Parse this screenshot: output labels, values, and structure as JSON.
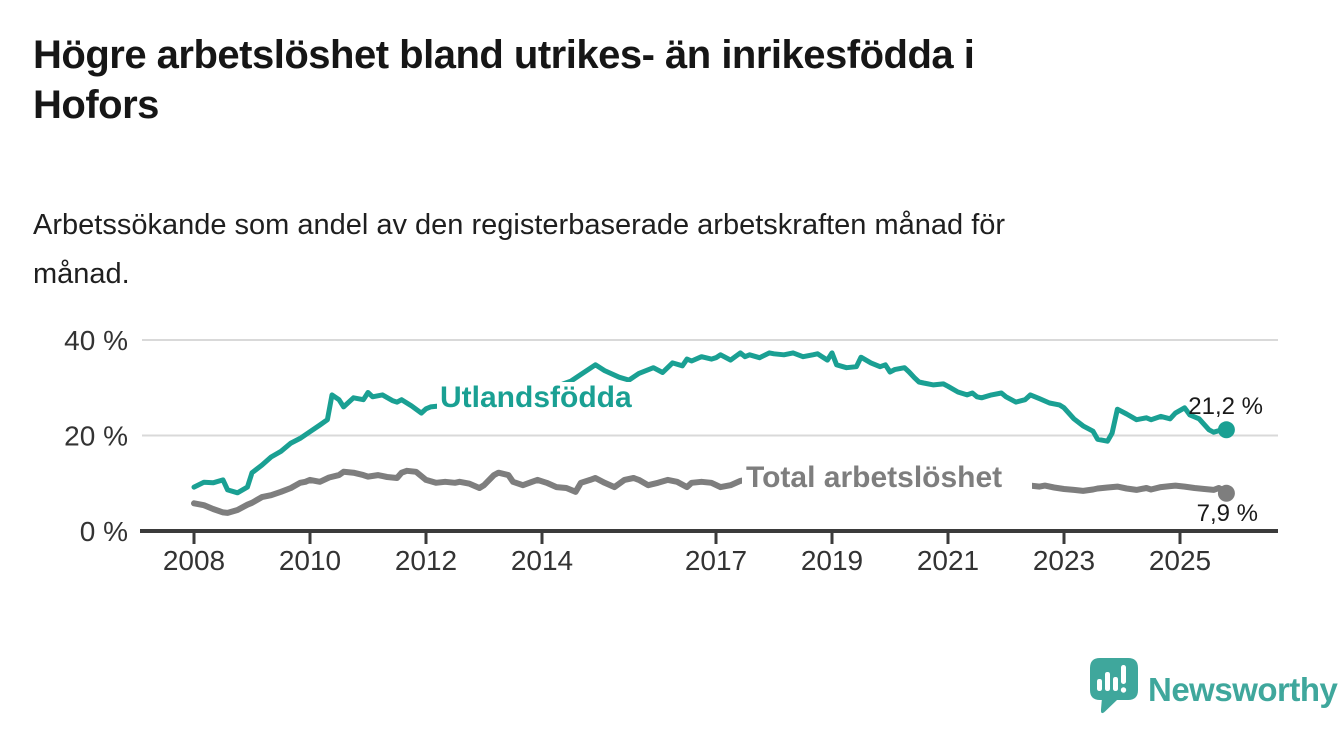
{
  "header": {
    "title_lines": [
      "Högre arbetslöshet bland utrikes- än inrikesfödda i",
      "Hofors"
    ],
    "subtitle_lines": [
      "Arbetssökande som andel av den registerbaserade arbetskraften månad för",
      "månad."
    ]
  },
  "chart_data": {
    "type": "line",
    "title": "Högre arbetslöshet bland utrikes- än inrikesfödda i Hofors",
    "subtitle": "Arbetssökande som andel av den registerbaserade arbetskraften månad för månad.",
    "grid": "horizontal-only",
    "legend_position": "inline-labels-on-lines",
    "x_axis": {
      "ticks": [
        2008,
        2010,
        2012,
        2014,
        2017,
        2019,
        2021,
        2023,
        2025
      ],
      "labels": [
        "2008",
        "2010",
        "2012",
        "2014",
        "2017",
        "2019",
        "2021",
        "2023",
        "2025"
      ],
      "range": [
        2007.1,
        2026.7
      ]
    },
    "y_axis": {
      "ticks": [
        0,
        20,
        40
      ],
      "labels": [
        "0 %",
        "20 %",
        "40 %"
      ],
      "range": [
        0,
        42
      ]
    },
    "series": [
      {
        "name": "Utlandsfödda",
        "color": "#1aa093",
        "end_value": 21.2,
        "end_label": "21,2 %",
        "points": [
          [
            2008.0,
            9.2
          ],
          [
            2008.17,
            10.2
          ],
          [
            2008.33,
            10.1
          ],
          [
            2008.5,
            10.7
          ],
          [
            2008.58,
            8.6
          ],
          [
            2008.75,
            8.0
          ],
          [
            2008.92,
            9.2
          ],
          [
            2009.0,
            12.2
          ],
          [
            2009.17,
            13.8
          ],
          [
            2009.33,
            15.5
          ],
          [
            2009.5,
            16.7
          ],
          [
            2009.67,
            18.4
          ],
          [
            2009.83,
            19.4
          ],
          [
            2010.0,
            20.8
          ],
          [
            2010.17,
            22.2
          ],
          [
            2010.3,
            23.3
          ],
          [
            2010.38,
            28.5
          ],
          [
            2010.5,
            27.5
          ],
          [
            2010.58,
            26.0
          ],
          [
            2010.75,
            27.9
          ],
          [
            2010.92,
            27.5
          ],
          [
            2011.0,
            29.0
          ],
          [
            2011.08,
            28.1
          ],
          [
            2011.25,
            28.5
          ],
          [
            2011.42,
            27.3
          ],
          [
            2011.5,
            27.0
          ],
          [
            2011.58,
            27.5
          ],
          [
            2011.75,
            26.2
          ],
          [
            2011.92,
            24.7
          ],
          [
            2012.0,
            25.6
          ],
          [
            2012.08,
            26.0
          ],
          [
            2012.25,
            26.2
          ],
          [
            2012.42,
            25.5
          ],
          [
            2012.58,
            25.9
          ],
          [
            2012.75,
            26.5
          ],
          [
            2013.0,
            27.1
          ],
          [
            2013.25,
            27.7
          ],
          [
            2013.5,
            28.2
          ],
          [
            2013.75,
            28.9
          ],
          [
            2014.0,
            29.5
          ],
          [
            2014.25,
            30.3
          ],
          [
            2014.5,
            31.4
          ],
          [
            2014.67,
            32.8
          ],
          [
            2014.92,
            34.8
          ],
          [
            2015.08,
            33.6
          ],
          [
            2015.33,
            32.2
          ],
          [
            2015.5,
            31.6
          ],
          [
            2015.67,
            33.0
          ],
          [
            2015.92,
            34.2
          ],
          [
            2016.08,
            33.2
          ],
          [
            2016.25,
            35.2
          ],
          [
            2016.42,
            34.6
          ],
          [
            2016.5,
            36.0
          ],
          [
            2016.58,
            35.6
          ],
          [
            2016.75,
            36.5
          ],
          [
            2016.92,
            36.0
          ],
          [
            2017.0,
            36.3
          ],
          [
            2017.08,
            36.9
          ],
          [
            2017.25,
            35.8
          ],
          [
            2017.42,
            37.3
          ],
          [
            2017.5,
            36.5
          ],
          [
            2017.58,
            36.9
          ],
          [
            2017.75,
            36.3
          ],
          [
            2017.92,
            37.3
          ],
          [
            2018.0,
            37.1
          ],
          [
            2018.17,
            36.9
          ],
          [
            2018.33,
            37.3
          ],
          [
            2018.5,
            36.5
          ],
          [
            2018.67,
            36.9
          ],
          [
            2018.75,
            37.1
          ],
          [
            2018.83,
            36.5
          ],
          [
            2018.92,
            35.8
          ],
          [
            2019.0,
            37.3
          ],
          [
            2019.08,
            34.8
          ],
          [
            2019.25,
            34.2
          ],
          [
            2019.42,
            34.4
          ],
          [
            2019.5,
            36.4
          ],
          [
            2019.67,
            35.2
          ],
          [
            2019.83,
            34.4
          ],
          [
            2019.92,
            34.8
          ],
          [
            2020.0,
            33.3
          ],
          [
            2020.08,
            33.8
          ],
          [
            2020.25,
            34.2
          ],
          [
            2020.33,
            33.3
          ],
          [
            2020.42,
            32.1
          ],
          [
            2020.5,
            31.2
          ],
          [
            2020.58,
            31.0
          ],
          [
            2020.75,
            30.6
          ],
          [
            2020.92,
            30.8
          ],
          [
            2021.0,
            30.3
          ],
          [
            2021.17,
            29.1
          ],
          [
            2021.33,
            28.5
          ],
          [
            2021.42,
            28.9
          ],
          [
            2021.5,
            28.1
          ],
          [
            2021.58,
            27.9
          ],
          [
            2021.75,
            28.5
          ],
          [
            2021.92,
            28.9
          ],
          [
            2022.0,
            28.1
          ],
          [
            2022.17,
            27.0
          ],
          [
            2022.33,
            27.5
          ],
          [
            2022.42,
            28.5
          ],
          [
            2022.58,
            27.7
          ],
          [
            2022.75,
            26.8
          ],
          [
            2022.92,
            26.4
          ],
          [
            2023.0,
            25.8
          ],
          [
            2023.17,
            23.5
          ],
          [
            2023.33,
            22.0
          ],
          [
            2023.5,
            20.9
          ],
          [
            2023.58,
            19.2
          ],
          [
            2023.75,
            18.8
          ],
          [
            2023.83,
            20.5
          ],
          [
            2023.92,
            25.5
          ],
          [
            2024.08,
            24.5
          ],
          [
            2024.25,
            23.3
          ],
          [
            2024.42,
            23.7
          ],
          [
            2024.5,
            23.3
          ],
          [
            2024.67,
            24.0
          ],
          [
            2024.83,
            23.5
          ],
          [
            2024.92,
            24.7
          ],
          [
            2025.08,
            25.8
          ],
          [
            2025.17,
            24.3
          ],
          [
            2025.33,
            23.5
          ],
          [
            2025.5,
            21.2
          ],
          [
            2025.58,
            20.7
          ],
          [
            2025.67,
            21.0
          ],
          [
            2025.8,
            21.2
          ]
        ]
      },
      {
        "name": "Total arbetslöshet",
        "color": "#7e7e7e",
        "end_value": 7.9,
        "end_label": "7,9 %",
        "points": [
          [
            2008.0,
            5.8
          ],
          [
            2008.17,
            5.4
          ],
          [
            2008.33,
            4.6
          ],
          [
            2008.5,
            3.9
          ],
          [
            2008.58,
            3.8
          ],
          [
            2008.75,
            4.4
          ],
          [
            2008.92,
            5.5
          ],
          [
            2009.0,
            5.9
          ],
          [
            2009.17,
            7.1
          ],
          [
            2009.33,
            7.5
          ],
          [
            2009.5,
            8.2
          ],
          [
            2009.67,
            9.0
          ],
          [
            2009.83,
            10.1
          ],
          [
            2009.92,
            10.3
          ],
          [
            2010.0,
            10.7
          ],
          [
            2010.17,
            10.3
          ],
          [
            2010.33,
            11.2
          ],
          [
            2010.5,
            11.7
          ],
          [
            2010.58,
            12.4
          ],
          [
            2010.75,
            12.2
          ],
          [
            2010.92,
            11.7
          ],
          [
            2011.0,
            11.4
          ],
          [
            2011.17,
            11.7
          ],
          [
            2011.33,
            11.3
          ],
          [
            2011.5,
            11.1
          ],
          [
            2011.58,
            12.2
          ],
          [
            2011.67,
            12.6
          ],
          [
            2011.83,
            12.4
          ],
          [
            2012.0,
            10.7
          ],
          [
            2012.17,
            10.1
          ],
          [
            2012.33,
            10.3
          ],
          [
            2012.5,
            10.1
          ],
          [
            2012.58,
            10.3
          ],
          [
            2012.75,
            9.9
          ],
          [
            2012.92,
            9.0
          ],
          [
            2013.0,
            9.6
          ],
          [
            2013.17,
            11.7
          ],
          [
            2013.25,
            12.2
          ],
          [
            2013.42,
            11.7
          ],
          [
            2013.5,
            10.3
          ],
          [
            2013.67,
            9.6
          ],
          [
            2013.83,
            10.3
          ],
          [
            2013.92,
            10.7
          ],
          [
            2014.08,
            10.1
          ],
          [
            2014.25,
            9.2
          ],
          [
            2014.42,
            9.0
          ],
          [
            2014.58,
            8.2
          ],
          [
            2014.67,
            10.1
          ],
          [
            2014.83,
            10.7
          ],
          [
            2014.92,
            11.1
          ],
          [
            2015.08,
            10.1
          ],
          [
            2015.25,
            9.2
          ],
          [
            2015.42,
            10.7
          ],
          [
            2015.58,
            11.1
          ],
          [
            2015.67,
            10.7
          ],
          [
            2015.83,
            9.6
          ],
          [
            2016.0,
            10.1
          ],
          [
            2016.17,
            10.7
          ],
          [
            2016.33,
            10.3
          ],
          [
            2016.5,
            9.2
          ],
          [
            2016.58,
            10.1
          ],
          [
            2016.75,
            10.3
          ],
          [
            2016.92,
            10.1
          ],
          [
            2017.08,
            9.2
          ],
          [
            2017.25,
            9.6
          ],
          [
            2017.42,
            10.5
          ],
          [
            2017.5,
            10.7
          ],
          [
            2017.67,
            10.2
          ],
          [
            2017.92,
            9.7
          ],
          [
            2018.08,
            10.2
          ],
          [
            2018.33,
            10.6
          ],
          [
            2018.5,
            10.3
          ],
          [
            2018.67,
            9.8
          ],
          [
            2018.92,
            10.0
          ],
          [
            2019.08,
            10.3
          ],
          [
            2019.33,
            9.8
          ],
          [
            2019.5,
            9.6
          ],
          [
            2019.67,
            9.9
          ],
          [
            2019.92,
            10.2
          ],
          [
            2020.08,
            10.5
          ],
          [
            2020.33,
            10.8
          ],
          [
            2020.5,
            10.4
          ],
          [
            2020.67,
            10.0
          ],
          [
            2020.92,
            9.8
          ],
          [
            2021.08,
            9.9
          ],
          [
            2021.33,
            9.6
          ],
          [
            2021.5,
            9.4
          ],
          [
            2021.67,
            9.6
          ],
          [
            2021.92,
            9.8
          ],
          [
            2022.08,
            9.7
          ],
          [
            2022.25,
            9.8
          ],
          [
            2022.42,
            9.5
          ],
          [
            2022.58,
            9.3
          ],
          [
            2022.67,
            9.5
          ],
          [
            2022.83,
            9.1
          ],
          [
            2023.0,
            8.8
          ],
          [
            2023.17,
            8.6
          ],
          [
            2023.33,
            8.4
          ],
          [
            2023.5,
            8.7
          ],
          [
            2023.58,
            8.9
          ],
          [
            2023.75,
            9.1
          ],
          [
            2023.92,
            9.3
          ],
          [
            2024.08,
            8.9
          ],
          [
            2024.25,
            8.6
          ],
          [
            2024.42,
            9.0
          ],
          [
            2024.5,
            8.7
          ],
          [
            2024.67,
            9.2
          ],
          [
            2024.83,
            9.4
          ],
          [
            2024.92,
            9.5
          ],
          [
            2025.08,
            9.3
          ],
          [
            2025.25,
            9.0
          ],
          [
            2025.42,
            8.8
          ],
          [
            2025.58,
            8.6
          ],
          [
            2025.67,
            9.0
          ],
          [
            2025.75,
            8.5
          ],
          [
            2025.8,
            7.9
          ]
        ]
      }
    ]
  },
  "footer": {
    "brand": "Newsworthy",
    "brand_color": "#3fa79c",
    "logo_icon": "chart-bars-exclamation-speech-bubble-icon"
  }
}
